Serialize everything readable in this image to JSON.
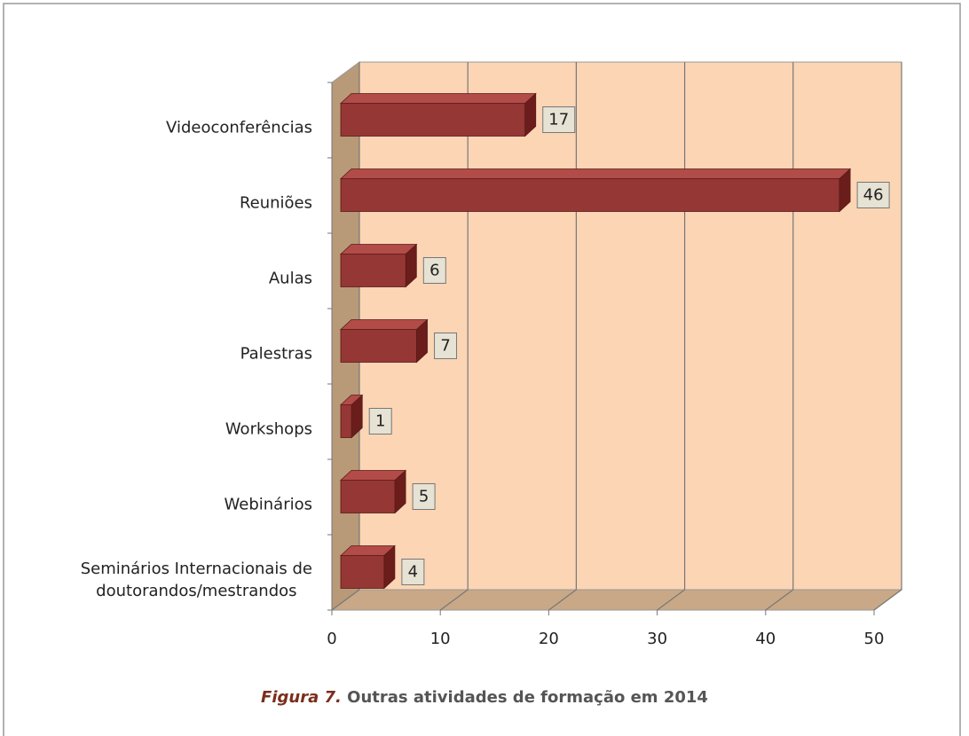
{
  "chart_data": {
    "type": "bar3d_horizontal",
    "caption_label": "Figura 7.",
    "title": "Outras atividades de formação em 2014",
    "categories": [
      "Videoconferências",
      "Reuniões",
      "Aulas",
      "Palestras",
      "Workshops",
      "Webinários",
      "Seminários Internacionais de\ndoutorandos/mestrandos"
    ],
    "values": [
      17,
      46,
      6,
      7,
      1,
      5,
      4
    ],
    "color": "#953735",
    "xlim": [
      0,
      50
    ],
    "xticks": [
      0,
      10,
      20,
      30,
      40,
      50
    ],
    "grid": true
  }
}
